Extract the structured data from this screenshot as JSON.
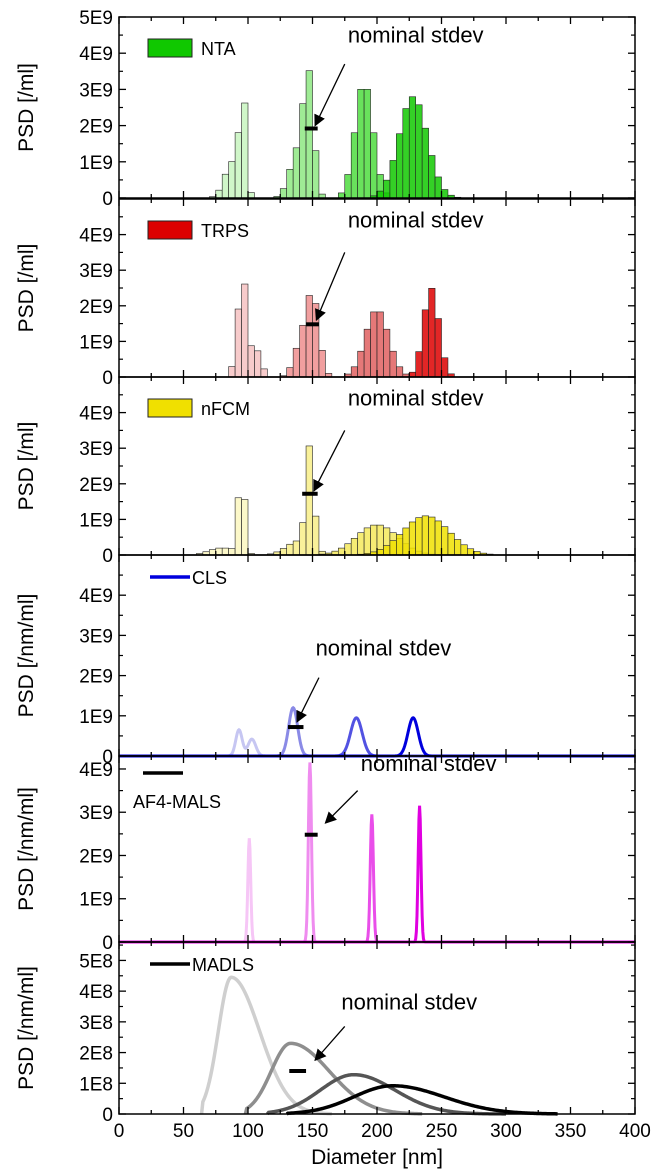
{
  "chart_data": {
    "type": "bar",
    "xlabel": "Diameter [nm]",
    "xlim": [
      0,
      400
    ],
    "x_ticks": [
      "0",
      "50",
      "100",
      "150",
      "200",
      "250",
      "300",
      "350",
      "400"
    ],
    "annotation": "nominal stdev",
    "panels": [
      {
        "id": "nta",
        "ylabel": "PSD [/ml]",
        "ylim": [
          0,
          5000000000.0
        ],
        "y_ticks": [
          {
            "v": 0,
            "t": "0"
          },
          {
            "v": 1000000000.0,
            "t": "1E9"
          },
          {
            "v": 2000000000.0,
            "t": "2E9"
          },
          {
            "v": 3000000000.0,
            "t": "3E9"
          },
          {
            "v": 4000000000.0,
            "t": "4E9"
          },
          {
            "v": 5000000000.0,
            "t": "5E9"
          }
        ],
        "legend": "NTA",
        "legend_kind": "bar",
        "plot": "hist",
        "bin_width": 5,
        "series": [
          {
            "color": "#c8f5c0",
            "peaks": [
              [
                96,
                2800000000.0,
                2.5
              ],
              [
                88,
                1000000000.0,
                6
              ]
            ],
            "range": [
              60,
              180
            ]
          },
          {
            "color": "#8ee882",
            "peaks": [
              [
                147,
                3200000000.0,
                4
              ],
              [
                138,
                1200000000.0,
                6
              ]
            ],
            "range": [
              100,
              210
            ]
          },
          {
            "color": "#4fdc40",
            "peaks": [
              [
                190,
                3200000000.0,
                7
              ]
            ],
            "range": [
              140,
              250
            ]
          },
          {
            "color": "#10c800",
            "peaks": [
              [
                228,
                2800000000.0,
                11
              ]
            ],
            "range": [
              170,
              300
            ]
          }
        ],
        "stdev_mark": {
          "x": [
            144,
            154
          ],
          "y": 1920000000.0
        },
        "annot_text_pos": {
          "x": 230,
          "y": 4300000000.0
        },
        "arrow": {
          "from": [
            175,
            3700000000.0
          ],
          "to": [
            152,
            2000000000.0
          ]
        }
      },
      {
        "id": "trps",
        "ylabel": "PSD [/ml]",
        "ylim": [
          0,
          5000000000.0
        ],
        "y_ticks": [
          {
            "v": 0,
            "t": "0"
          },
          {
            "v": 1000000000.0,
            "t": "1E9"
          },
          {
            "v": 2000000000.0,
            "t": "2E9"
          },
          {
            "v": 3000000000.0,
            "t": "3E9"
          },
          {
            "v": 4000000000.0,
            "t": "4E9"
          }
        ],
        "legend": "TRPS",
        "legend_kind": "bar",
        "plot": "hist",
        "bin_width": 5,
        "series": [
          {
            "color": "#f6c2c2",
            "peaks": [
              [
                96,
                2800000000.0,
                4
              ],
              [
                108,
                700000000.0,
                3
              ]
            ],
            "range": [
              70,
              140
            ]
          },
          {
            "color": "#ee8e8e",
            "peaks": [
              [
                150,
                2300000000.0,
                5
              ],
              [
                140,
                800000000.0,
                5
              ]
            ],
            "range": [
              110,
              190
            ]
          },
          {
            "color": "#e06060",
            "peaks": [
              [
                200,
                1900000000.0,
                9
              ]
            ],
            "range": [
              160,
              240
            ]
          },
          {
            "color": "#dd0000",
            "peaks": [
              [
                242,
                2500000000.0,
                6
              ]
            ],
            "range": [
              210,
              270
            ]
          }
        ],
        "stdev_mark": {
          "x": [
            145,
            155
          ],
          "y": 1480000000.0
        },
        "annot_text_pos": {
          "x": 230,
          "y": 4200000000.0
        },
        "arrow": {
          "from": [
            175,
            3500000000.0
          ],
          "to": [
            153,
            1600000000.0
          ]
        }
      },
      {
        "id": "nfcm",
        "ylabel": "PSD [/ml]",
        "ylim": [
          0,
          5000000000.0
        ],
        "y_ticks": [
          {
            "v": 0,
            "t": "0"
          },
          {
            "v": 1000000000.0,
            "t": "1E9"
          },
          {
            "v": 2000000000.0,
            "t": "2E9"
          },
          {
            "v": 3000000000.0,
            "t": "3E9"
          },
          {
            "v": 4000000000.0,
            "t": "4E9"
          }
        ],
        "legend": "nFCM",
        "legend_kind": "bar",
        "plot": "hist",
        "bin_width": 5,
        "series": [
          {
            "color": "#fcf7c0",
            "peaks": [
              [
                95,
                2500000000.0,
                2.5
              ],
              [
                80,
                200000000.0,
                10
              ]
            ],
            "range": [
              40,
              130
            ]
          },
          {
            "color": "#f8ef88",
            "peaks": [
              [
                148,
                2800000000.0,
                3
              ],
              [
                140,
                400000000.0,
                10
              ]
            ],
            "range": [
              100,
              180
            ]
          },
          {
            "color": "#f5e95c",
            "peaks": [
              [
                200,
                850000000.0,
                16
              ]
            ],
            "range": [
              140,
              260
            ]
          },
          {
            "color": "#f0e000",
            "peaks": [
              [
                238,
                1100000000.0,
                18
              ]
            ],
            "range": [
              170,
              290
            ]
          }
        ],
        "stdev_mark": {
          "x": [
            142,
            154
          ],
          "y": 1720000000.0
        },
        "annot_text_pos": {
          "x": 230,
          "y": 4200000000.0
        },
        "arrow": {
          "from": [
            175,
            3500000000.0
          ],
          "to": [
            151,
            1800000000.0
          ]
        }
      },
      {
        "id": "cls",
        "ylabel": "PSD [/nm/ml]",
        "ylim": [
          0,
          5000000000.0
        ],
        "y_ticks": [
          {
            "v": 0,
            "t": "0"
          },
          {
            "v": 1000000000.0,
            "t": "1E9"
          },
          {
            "v": 2000000000.0,
            "t": "2E9"
          },
          {
            "v": 3000000000.0,
            "t": "3E9"
          },
          {
            "v": 4000000000.0,
            "t": "4E9"
          }
        ],
        "legend": "CLS",
        "legend_kind": "line",
        "plot": "line",
        "series": [
          {
            "color": "#c6c6f2",
            "peaks": [
              [
                93,
                650000000.0,
                2.5
              ],
              [
                103,
                420000000.0,
                3
              ]
            ]
          },
          {
            "color": "#8a8ae6",
            "peaks": [
              [
                135,
                1200000000.0,
                3.5
              ]
            ]
          },
          {
            "color": "#5252e2",
            "peaks": [
              [
                184,
                950000000.0,
                4.5
              ]
            ]
          },
          {
            "color": "#0000dd",
            "peaks": [
              [
                228,
                950000000.0,
                4
              ]
            ]
          }
        ],
        "stdev_mark": {
          "x": [
            131,
            143
          ],
          "y": 720000000.0
        },
        "annot_text_pos": {
          "x": 205,
          "y": 2500000000.0
        },
        "arrow": {
          "from": [
            155,
            1950000000.0
          ],
          "to": [
            138,
            850000000.0
          ]
        }
      },
      {
        "id": "af4",
        "ylabel": "PSD [/nm/ml]",
        "ylim": [
          0,
          4300000000.0
        ],
        "y_ticks": [
          {
            "v": 0,
            "t": "0"
          },
          {
            "v": 1000000000.0,
            "t": "1E9"
          },
          {
            "v": 2000000000.0,
            "t": "2E9"
          },
          {
            "v": 3000000000.0,
            "t": "3E9"
          },
          {
            "v": 4000000000.0,
            "t": "4E9"
          }
        ],
        "legend": "AF4-MALS",
        "legend_kind": "line_above",
        "plot": "line",
        "series": [
          {
            "color": "#f6c6f6",
            "peaks": [
              [
                101,
                2400000000.0,
                1.1
              ]
            ]
          },
          {
            "color": "#ef8cef",
            "peaks": [
              [
                148,
                4150000000.0,
                1.2
              ]
            ]
          },
          {
            "color": "#e94ee9",
            "peaks": [
              [
                196,
                2950000000.0,
                1.2
              ]
            ]
          },
          {
            "color": "#e000e0",
            "peaks": [
              [
                233,
                3150000000.0,
                1.1
              ]
            ]
          }
        ],
        "stdev_mark": {
          "x": [
            144,
            154
          ],
          "y": 2480000000.0
        },
        "annot_text_pos": {
          "x": 240,
          "y": 3950000000.0
        },
        "arrow": {
          "from": [
            185,
            3500000000.0
          ],
          "to": [
            160,
            2750000000.0
          ]
        }
      },
      {
        "id": "madls",
        "ylabel": "PSD [/nm/ml]",
        "ylim": [
          0,
          560000000.0
        ],
        "y_ticks": [
          {
            "v": 0,
            "t": "0"
          },
          {
            "v": 100000000.0,
            "t": "1E8"
          },
          {
            "v": 200000000.0,
            "t": "2E8"
          },
          {
            "v": 300000000.0,
            "t": "3E8"
          },
          {
            "v": 400000000.0,
            "t": "4E8"
          },
          {
            "v": 500000000.0,
            "t": "5E8"
          }
        ],
        "legend": "MADLS",
        "legend_kind": "line",
        "plot": "lognorm",
        "series": [
          {
            "color": "#cfcfcf",
            "start": 64,
            "peak": 87,
            "amp": 445000000.0,
            "wL": 10,
            "wR": 22,
            "end": 165
          },
          {
            "color": "#8e8e8e",
            "start": 98,
            "peak": 133,
            "amp": 230000000.0,
            "wL": 15,
            "wR": 30,
            "end": 235
          },
          {
            "color": "#555555",
            "start": 115,
            "peak": 182,
            "amp": 128000000.0,
            "wL": 26,
            "wR": 32,
            "end": 300
          },
          {
            "color": "#000000",
            "start": 130,
            "peak": 212,
            "amp": 92000000.0,
            "wL": 30,
            "wR": 40,
            "end": 340
          }
        ],
        "stdev_mark": {
          "x": [
            132,
            145
          ],
          "y": 140000000.0
        },
        "annot_text_pos": {
          "x": 225,
          "y": 340000000.0
        },
        "arrow": {
          "from": [
            175,
            285000000.0
          ],
          "to": [
            152,
            175000000.0
          ]
        }
      }
    ]
  }
}
